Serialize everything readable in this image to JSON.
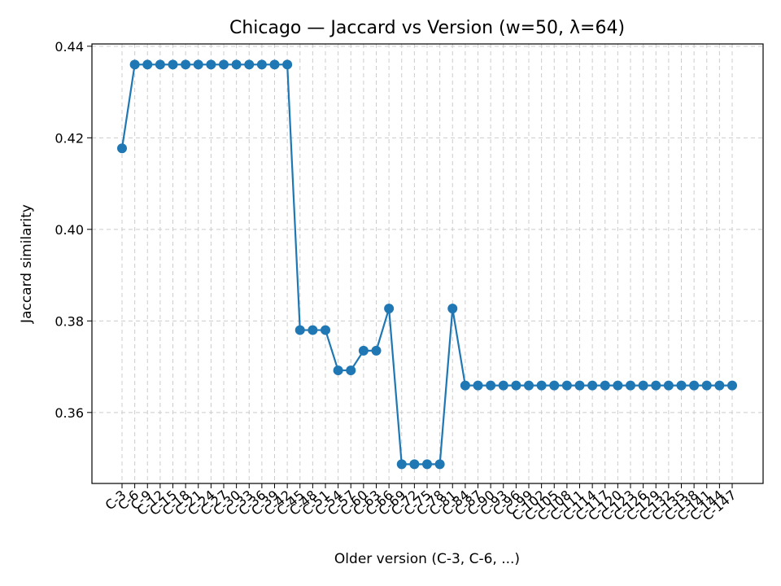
{
  "chart_data": {
    "type": "line",
    "title": "Chicago — Jaccard vs Version (w=50, λ=64)",
    "xlabel": "Older version (C-3, C-6, ...)",
    "ylabel": "Jaccard similarity",
    "ylim": [
      0.3445,
      0.4405
    ],
    "yticks": [
      0.36,
      0.38,
      0.4,
      0.42,
      0.44
    ],
    "ytick_labels": [
      "0.36",
      "0.38",
      "0.40",
      "0.42",
      "0.44"
    ],
    "grid": true,
    "line_color": "#1f77b4",
    "categories": [
      "C-3",
      "C-6",
      "C-9",
      "C-12",
      "C-15",
      "C-18",
      "C-21",
      "C-24",
      "C-27",
      "C-30",
      "C-33",
      "C-36",
      "C-39",
      "C-42",
      "C-45",
      "C-48",
      "C-51",
      "C-54",
      "C-57",
      "C-60",
      "C-63",
      "C-66",
      "C-69",
      "C-72",
      "C-75",
      "C-78",
      "C-81",
      "C-84",
      "C-87",
      "C-90",
      "C-93",
      "C-96",
      "C-99",
      "C-102",
      "C-105",
      "C-108",
      "C-111",
      "C-114",
      "C-117",
      "C-120",
      "C-123",
      "C-126",
      "C-129",
      "C-132",
      "C-135",
      "C-138",
      "C-141",
      "C-144",
      "C-147"
    ],
    "series": [
      {
        "values": [
          0.4177,
          0.436,
          0.436,
          0.436,
          0.436,
          0.436,
          0.436,
          0.436,
          0.436,
          0.436,
          0.436,
          0.436,
          0.436,
          0.436,
          0.378,
          0.378,
          0.378,
          0.3692,
          0.3692,
          0.3735,
          0.3735,
          0.3827,
          0.3487,
          0.3487,
          0.3487,
          0.3487,
          0.3827,
          0.3659,
          0.3659,
          0.3659,
          0.3659,
          0.3659,
          0.3659,
          0.3659,
          0.3659,
          0.3659,
          0.3659,
          0.3659,
          0.3659,
          0.3659,
          0.3659,
          0.3659,
          0.3659,
          0.3659,
          0.3659,
          0.3659,
          0.3659,
          0.3659,
          0.3659
        ]
      }
    ]
  }
}
